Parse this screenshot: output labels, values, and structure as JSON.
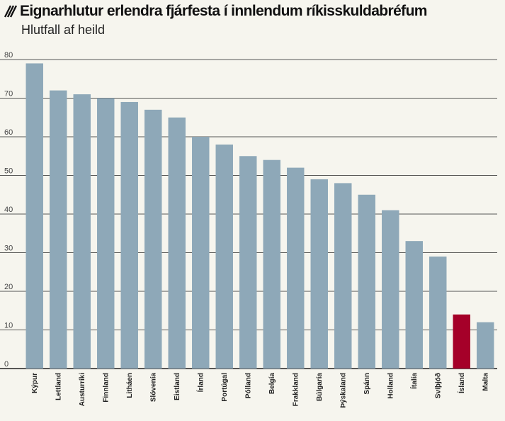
{
  "header": {
    "title": "Eignarhlutur erlendra fjárfesta í innlendum ríkisskuldabréfum",
    "subtitle": "Hlutfall af heild",
    "icon": "hatch-icon"
  },
  "colors": {
    "bar": "#8ea8b8",
    "highlight": "#a50029",
    "background": "#f6f5ee",
    "gridline": "#222222"
  },
  "chart_data": {
    "type": "bar",
    "title": "Eignarhlutur erlendra fjárfesta í innlendum ríkisskuldabréfum",
    "subtitle": "Hlutfall af heild",
    "categories": [
      "Kýpur",
      "Lettland",
      "Austurríki",
      "Finnland",
      "Litháen",
      "Slóvenía",
      "Eistland",
      "Írland",
      "Portúgal",
      "Pólland",
      "Belgía",
      "Frakkland",
      "Búlgaría",
      "Þýskaland",
      "Spánn",
      "Holland",
      "Ítalía",
      "Svíþjóð",
      "Ísland",
      "Malta"
    ],
    "values": [
      79,
      72,
      71,
      70,
      69,
      67,
      65,
      60,
      58,
      55,
      54,
      52,
      49,
      48,
      45,
      41,
      33,
      29,
      14,
      12
    ],
    "highlight_category": "Ísland",
    "ylim": [
      0,
      80
    ],
    "yticks": [
      0,
      10,
      20,
      30,
      40,
      50,
      60,
      70,
      80
    ],
    "grid": true,
    "legend": "none"
  }
}
